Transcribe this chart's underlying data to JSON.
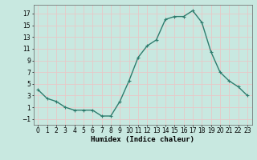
{
  "x": [
    0,
    1,
    2,
    3,
    4,
    5,
    6,
    7,
    8,
    9,
    10,
    11,
    12,
    13,
    14,
    15,
    16,
    17,
    18,
    19,
    20,
    21,
    22,
    23
  ],
  "y": [
    4,
    2.5,
    2,
    1,
    0.5,
    0.5,
    0.5,
    -0.5,
    -0.5,
    2,
    5.5,
    9.5,
    11.5,
    12.5,
    16,
    16.5,
    16.5,
    17.5,
    15.5,
    10.5,
    7,
    5.5,
    4.5,
    3
  ],
  "line_color": "#2e7d6e",
  "marker": "+",
  "marker_size": 3,
  "background_color": "#c8e8e0",
  "grid_color": "#e8c8c8",
  "xlabel": "Humidex (Indice chaleur)",
  "xlim": [
    -0.5,
    23.5
  ],
  "ylim": [
    -2,
    18.5
  ],
  "yticks": [
    -1,
    1,
    3,
    5,
    7,
    9,
    11,
    13,
    15,
    17
  ],
  "xticks": [
    0,
    1,
    2,
    3,
    4,
    5,
    6,
    7,
    8,
    9,
    10,
    11,
    12,
    13,
    14,
    15,
    16,
    17,
    18,
    19,
    20,
    21,
    22,
    23
  ],
  "tick_fontsize": 5.5,
  "xlabel_fontsize": 6.5,
  "line_width": 1.0
}
